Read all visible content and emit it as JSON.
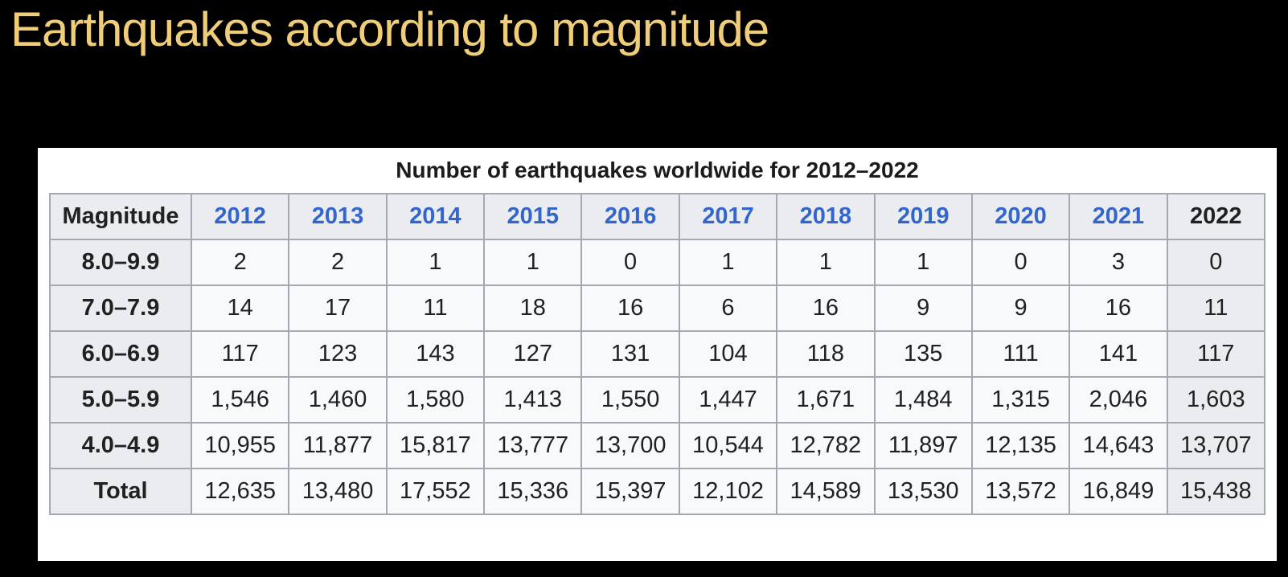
{
  "slide": {
    "title": "Earthquakes according to magnitude",
    "background_color": "#000000",
    "title_color": "#F0CE79"
  },
  "table": {
    "caption": "Number of earthquakes worldwide for 2012–2022",
    "columns": [
      {
        "label": "Magnitude",
        "is_link": false
      },
      {
        "label": "2012",
        "is_link": true
      },
      {
        "label": "2013",
        "is_link": true
      },
      {
        "label": "2014",
        "is_link": true
      },
      {
        "label": "2015",
        "is_link": true
      },
      {
        "label": "2016",
        "is_link": true
      },
      {
        "label": "2017",
        "is_link": true
      },
      {
        "label": "2018",
        "is_link": true
      },
      {
        "label": "2019",
        "is_link": true
      },
      {
        "label": "2020",
        "is_link": true
      },
      {
        "label": "2021",
        "is_link": true
      },
      {
        "label": "2022",
        "is_link": false
      }
    ],
    "rows": [
      {
        "label": "8.0–9.9",
        "values": [
          "2",
          "2",
          "1",
          "1",
          "0",
          "1",
          "1",
          "1",
          "0",
          "3",
          "0"
        ]
      },
      {
        "label": "7.0–7.9",
        "values": [
          "14",
          "17",
          "11",
          "18",
          "16",
          "6",
          "16",
          "9",
          "9",
          "16",
          "11"
        ]
      },
      {
        "label": "6.0–6.9",
        "values": [
          "117",
          "123",
          "143",
          "127",
          "131",
          "104",
          "118",
          "135",
          "111",
          "141",
          "117"
        ]
      },
      {
        "label": "5.0–5.9",
        "values": [
          "1,546",
          "1,460",
          "1,580",
          "1,413",
          "1,550",
          "1,447",
          "1,671",
          "1,484",
          "1,315",
          "2,046",
          "1,603"
        ]
      },
      {
        "label": "4.0–4.9",
        "values": [
          "10,955",
          "11,877",
          "15,817",
          "13,777",
          "13,700",
          "10,544",
          "12,782",
          "11,897",
          "12,135",
          "14,643",
          "13,707"
        ]
      },
      {
        "label": "Total",
        "values": [
          "12,635",
          "13,480",
          "17,552",
          "15,336",
          "15,397",
          "12,102",
          "14,589",
          "13,530",
          "13,572",
          "16,849",
          "15,438"
        ]
      }
    ],
    "colors": {
      "border": "#A2A9B1",
      "header_bg": "#EAECF0",
      "cell_bg": "#F8F9FA",
      "text": "#202122",
      "year_link_blue": "#3366CC",
      "panel_bg": "#FFFFFF"
    }
  },
  "chart_data": {
    "type": "table",
    "title": "Number of earthquakes worldwide for 2012–2022",
    "columns": [
      "Magnitude",
      "2012",
      "2013",
      "2014",
      "2015",
      "2016",
      "2017",
      "2018",
      "2019",
      "2020",
      "2021",
      "2022"
    ],
    "rows": [
      [
        "8.0–9.9",
        2,
        2,
        1,
        1,
        0,
        1,
        1,
        1,
        0,
        3,
        0
      ],
      [
        "7.0–7.9",
        14,
        17,
        11,
        18,
        16,
        6,
        16,
        9,
        9,
        16,
        11
      ],
      [
        "6.0–6.9",
        117,
        123,
        143,
        127,
        131,
        104,
        118,
        135,
        111,
        141,
        117
      ],
      [
        "5.0–5.9",
        1546,
        1460,
        1580,
        1413,
        1550,
        1447,
        1671,
        1484,
        1315,
        2046,
        1603
      ],
      [
        "4.0–4.9",
        10955,
        11877,
        15817,
        13777,
        13700,
        10544,
        12782,
        11897,
        12135,
        14643,
        13707
      ],
      [
        "Total",
        12635,
        13480,
        17552,
        15336,
        15397,
        12102,
        14589,
        13530,
        13572,
        16849,
        15438
      ]
    ]
  }
}
